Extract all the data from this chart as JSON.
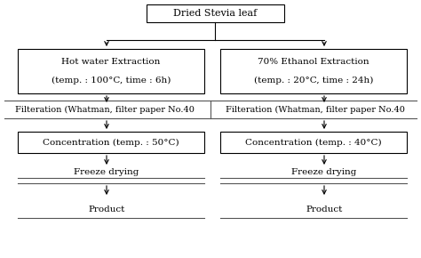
{
  "title": "Dried Stevia leaf",
  "left_branch": {
    "extraction_line1": "Hot water Extraction",
    "extraction_line2": "(temp. : 100°C, time : 6h)",
    "filtration": "Filteration (Whatman, filter paper No.40",
    "concentration": "Concentration (temp. : 50°C)",
    "freeze": "Freeze drying",
    "product": "Product"
  },
  "right_branch": {
    "extraction_line1": "70% Ethanol Extraction",
    "extraction_line2": "(temp. : 20°C, time : 24h)",
    "filtration": "Filteration (Whatman, filter paper No.40",
    "concentration": "Concentration (temp. : 40°C)",
    "freeze": "Freeze drying",
    "product": "Product"
  },
  "bg_color": "#ffffff",
  "box_edge_color": "#000000",
  "text_color": "#000000",
  "arrow_color": "#000000",
  "line_color": "#555555",
  "font_size": 7.5
}
